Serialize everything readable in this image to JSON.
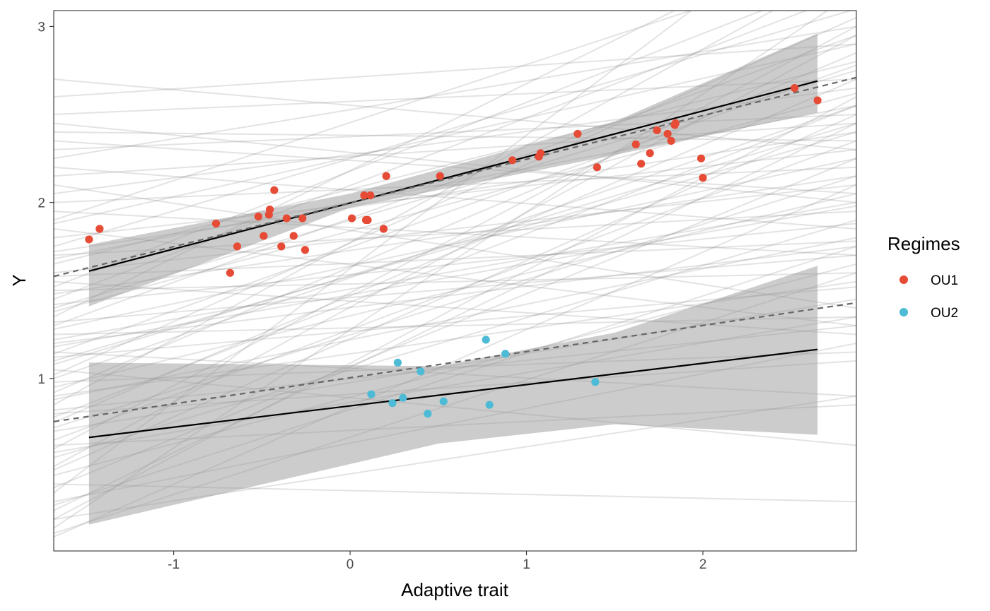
{
  "chart_data": {
    "type": "scatter",
    "title": "",
    "xlabel": "Adaptive trait",
    "ylabel": "Y",
    "xlim": [
      -1.68,
      2.87
    ],
    "ylim": [
      0.02,
      3.09
    ],
    "xticks": [
      -1,
      0,
      1,
      2
    ],
    "xtick_labels": [
      "-1",
      "0",
      "1",
      "2"
    ],
    "yticks": [
      1,
      2,
      3
    ],
    "ytick_labels": [
      "1",
      "2",
      "3"
    ],
    "grid": false,
    "legend": {
      "title": "Regimes",
      "position": "right",
      "entries": [
        {
          "label": "OU1",
          "color": "#E64B35"
        },
        {
          "label": "OU2",
          "color": "#4DBBD5"
        }
      ]
    },
    "series": [
      {
        "name": "OU1",
        "color": "#E64B35",
        "points": [
          [
            -1.48,
            1.79
          ],
          [
            -1.42,
            1.85
          ],
          [
            -0.76,
            1.88
          ],
          [
            -0.68,
            1.6
          ],
          [
            -0.64,
            1.75
          ],
          [
            -0.52,
            1.92
          ],
          [
            -0.49,
            1.81
          ],
          [
            -0.46,
            1.93
          ],
          [
            -0.455,
            1.96
          ],
          [
            -0.43,
            2.07
          ],
          [
            -0.39,
            1.75
          ],
          [
            -0.36,
            1.91
          ],
          [
            -0.32,
            1.81
          ],
          [
            -0.27,
            1.91
          ],
          [
            -0.255,
            1.73
          ],
          [
            0.01,
            1.91
          ],
          [
            0.08,
            2.04
          ],
          [
            0.09,
            1.9
          ],
          [
            0.1,
            1.9
          ],
          [
            0.115,
            2.04
          ],
          [
            0.19,
            1.85
          ],
          [
            0.205,
            2.15
          ],
          [
            0.51,
            2.15
          ],
          [
            0.92,
            2.24
          ],
          [
            1.07,
            2.26
          ],
          [
            1.08,
            2.28
          ],
          [
            1.29,
            2.39
          ],
          [
            1.4,
            2.2
          ],
          [
            1.62,
            2.33
          ],
          [
            1.65,
            2.22
          ],
          [
            1.7,
            2.28
          ],
          [
            1.74,
            2.41
          ],
          [
            1.8,
            2.39
          ],
          [
            1.82,
            2.35
          ],
          [
            1.84,
            2.44
          ],
          [
            1.845,
            2.45
          ],
          [
            1.99,
            2.25
          ],
          [
            2.0,
            2.14
          ],
          [
            2.52,
            2.65
          ],
          [
            2.65,
            2.58
          ]
        ]
      },
      {
        "name": "OU2",
        "color": "#4DBBD5",
        "points": [
          [
            0.12,
            0.91
          ],
          [
            0.24,
            0.86
          ],
          [
            0.27,
            1.09
          ],
          [
            0.3,
            0.89
          ],
          [
            0.4,
            1.04
          ],
          [
            0.44,
            0.8
          ],
          [
            0.53,
            0.87
          ],
          [
            0.77,
            1.22
          ],
          [
            0.79,
            0.85
          ],
          [
            0.88,
            1.14
          ],
          [
            1.39,
            0.98
          ]
        ]
      }
    ],
    "fit_lines": [
      {
        "regime": "OU1",
        "style": "solid",
        "x": [
          -1.48,
          2.65
        ],
        "y": [
          1.61,
          2.69
        ]
      },
      {
        "regime": "OU1",
        "style": "dashed",
        "x": [
          -1.68,
          2.87
        ],
        "y": [
          1.58,
          2.71
        ]
      },
      {
        "regime": "OU2",
        "style": "solid",
        "x": [
          -1.48,
          2.65
        ],
        "y": [
          0.665,
          1.165
        ]
      },
      {
        "regime": "OU2",
        "style": "dashed",
        "x": [
          -1.68,
          2.87
        ],
        "y": [
          0.755,
          1.43
        ]
      }
    ],
    "confidence_bands": [
      {
        "regime": "OU1",
        "upper": [
          [
            -1.48,
            1.76
          ],
          [
            0.0,
            2.05
          ],
          [
            1.5,
            2.46
          ],
          [
            2.65,
            2.96
          ]
        ],
        "lower": [
          [
            -1.48,
            1.41
          ],
          [
            0.0,
            1.97
          ],
          [
            1.5,
            2.27
          ],
          [
            2.65,
            2.51
          ]
        ]
      },
      {
        "regime": "OU2",
        "upper": [
          [
            -1.48,
            1.09
          ],
          [
            0.5,
            1.07
          ],
          [
            1.5,
            1.26
          ],
          [
            2.65,
            1.64
          ]
        ],
        "lower": [
          [
            -1.48,
            0.17
          ],
          [
            0.5,
            0.63
          ],
          [
            1.5,
            0.74
          ],
          [
            2.65,
            0.68
          ]
        ]
      }
    ],
    "posterior_lines": [
      [
        1.2,
        1.75
      ],
      [
        1.1,
        2.4
      ],
      [
        1.3,
        2.95
      ],
      [
        1.5,
        1.6
      ],
      [
        2.0,
        2.2
      ],
      [
        1.8,
        2.3
      ],
      [
        0.9,
        1.55
      ],
      [
        0.8,
        1.1
      ],
      [
        1.25,
        1.35
      ],
      [
        1.4,
        2.75
      ],
      [
        2.3,
        2.5
      ],
      [
        2.6,
        2.9
      ],
      [
        1.7,
        1.95
      ],
      [
        0.55,
        1.9
      ],
      [
        0.4,
        0.3
      ],
      [
        1.05,
        0.62
      ],
      [
        1.45,
        3.2
      ],
      [
        0.35,
        3.8
      ],
      [
        0.1,
        2.1
      ],
      [
        0.2,
        2.6
      ],
      [
        1.9,
        3.4
      ],
      [
        2.1,
        1.4
      ],
      [
        0.95,
        2.05
      ],
      [
        0.6,
        3.0
      ],
      [
        1.15,
        0.9
      ],
      [
        2.2,
        1.85
      ],
      [
        1.6,
        2.1
      ],
      [
        0.7,
        1.45
      ],
      [
        1.35,
        3.6
      ],
      [
        0.25,
        2.45
      ],
      [
        2.45,
        2.0
      ],
      [
        1.0,
        2.55
      ],
      [
        0.85,
        3.35
      ],
      [
        1.55,
        1.25
      ],
      [
        0.45,
        1.65
      ],
      [
        2.7,
        2.3
      ],
      [
        1.95,
        1.7
      ],
      [
        0.15,
        3.2
      ],
      [
        1.22,
        2.0
      ],
      [
        0.75,
        2.7
      ],
      [
        1.65,
        2.8
      ],
      [
        0.3,
        1.2
      ],
      [
        2.05,
        2.65
      ],
      [
        1.12,
        1.52
      ],
      [
        0.65,
        2.35
      ],
      [
        1.85,
        1.3
      ],
      [
        0.5,
        2.95
      ],
      [
        1.42,
        1.88
      ],
      [
        2.35,
        2.05
      ],
      [
        0.88,
        1.8
      ],
      [
        0.2,
        0.9
      ],
      [
        1.75,
        3.1
      ],
      [
        1.28,
        2.25
      ],
      [
        0.58,
        1.35
      ],
      [
        1.02,
        3.05
      ],
      [
        2.15,
        2.45
      ],
      [
        1.48,
        2.15
      ],
      [
        0.38,
        2.25
      ],
      [
        1.68,
        2.55
      ],
      [
        0.92,
        2.85
      ],
      [
        1.18,
        1.98
      ],
      [
        0.72,
        2.15
      ],
      [
        1.38,
        2.62
      ],
      [
        0.12,
        1.6
      ],
      [
        1.58,
        1.78
      ],
      [
        2.5,
        2.7
      ],
      [
        0.82,
        1.3
      ],
      [
        1.08,
        2.45
      ],
      [
        1.88,
        2.9
      ],
      [
        0.48,
        2.5
      ],
      [
        1.32,
        1.7
      ],
      [
        2.25,
        3.0
      ],
      [
        0.62,
        0.85
      ],
      [
        1.72,
        2.4
      ],
      [
        0.98,
        1.15
      ],
      [
        1.52,
        3.3
      ],
      [
        0.28,
        1.75
      ],
      [
        2.4,
        2.35
      ],
      [
        1.14,
        2.78
      ],
      [
        0.78,
        2.55
      ]
    ]
  }
}
